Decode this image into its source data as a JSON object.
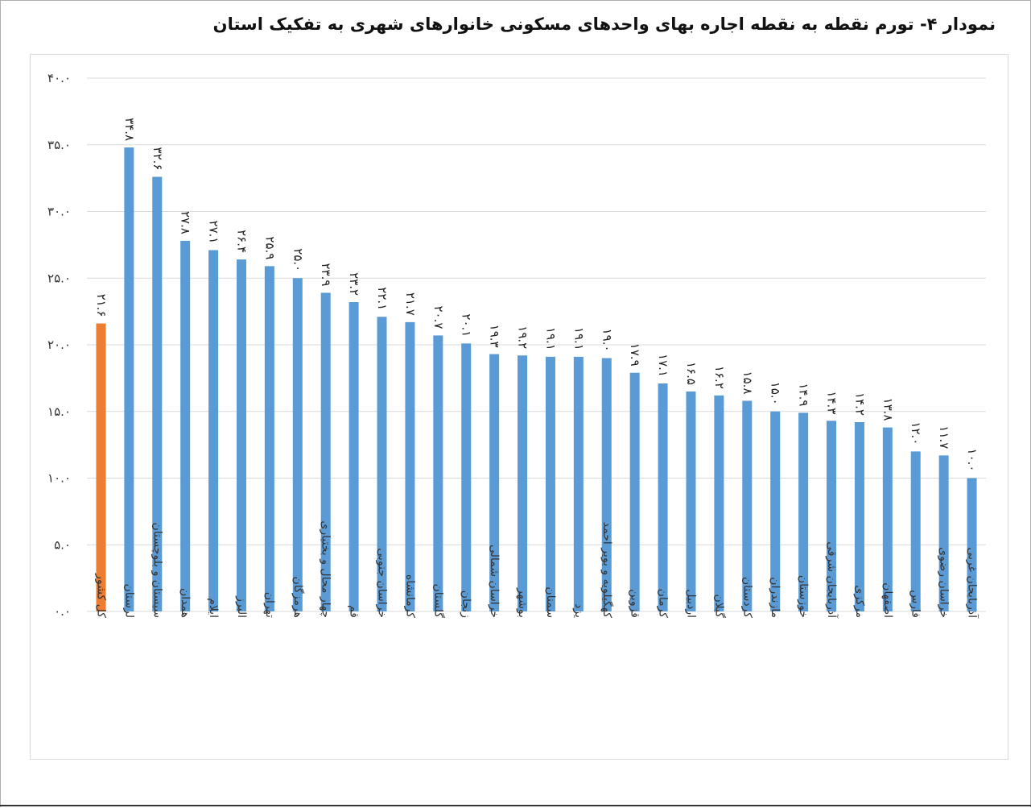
{
  "chart_data": {
    "type": "bar",
    "title": "نمودار ۴- تورم نقطه به نقطه  اجاره بهای واحدهای مسکونی خانوارهای شهری به تفکیک استان",
    "xlabel": "",
    "ylabel": "",
    "ylim": [
      0,
      40
    ],
    "yticks": [
      0,
      5,
      10,
      15,
      20,
      25,
      30,
      35,
      40
    ],
    "ytick_labels": [
      "۰.۰",
      "۵.۰",
      "۱۰.۰",
      "۱۵.۰",
      "۲۰.۰",
      "۲۵.۰",
      "۳۰.۰",
      "۳۵.۰",
      "۴۰.۰"
    ],
    "grid": true,
    "legend": "none",
    "colors": {
      "highlight": "#ED7D31",
      "default": "#5B9BD5",
      "grid": "#d9d9d9"
    },
    "categories": [
      "کل کشور",
      "لرستان",
      "سیستان و بلوچستان",
      "همدان",
      "ایلام",
      "البرز",
      "تهران",
      "هرمزگان",
      "چهار محال و بختیاری",
      "قم",
      "خراسان جنوبی",
      "کرمانشاه",
      "گلستان",
      "زنجان",
      "خراسان شمالی",
      "بوشهر",
      "سمنان",
      "یزد",
      "کهگیلویه و بویر احمد",
      "قزوین",
      "کرمان",
      "اردبیل",
      "گیلان",
      "کردستان",
      "مازندران",
      "خوزستان",
      "آذربایجان شرقی",
      "مرکزی",
      "اصفهان",
      "فارس",
      "خراسان رضوی",
      "آذربایجان غربی"
    ],
    "values": [
      21.6,
      34.8,
      32.6,
      27.8,
      27.1,
      26.4,
      25.9,
      25.0,
      23.9,
      23.2,
      22.1,
      21.7,
      20.7,
      20.1,
      19.3,
      19.2,
      19.1,
      19.1,
      19.0,
      17.9,
      17.1,
      16.5,
      16.2,
      15.8,
      15.0,
      14.9,
      14.3,
      14.2,
      13.8,
      12.0,
      11.7,
      10.0
    ],
    "value_labels": [
      "۲۱.۶",
      "۳۴.۸",
      "۳۲.۶",
      "۲۷.۸",
      "۲۷.۱",
      "۲۶.۴",
      "۲۵.۹",
      "۲۵.۰",
      "۲۳.۹",
      "۲۳.۲",
      "۲۲.۱",
      "۲۱.۷",
      "۲۰.۷",
      "۲۰.۱",
      "۱۹.۳",
      "۱۹.۲",
      "۱۹.۱",
      "۱۹.۱",
      "۱۹.۰",
      "۱۷.۹",
      "۱۷.۱",
      "۱۶.۵",
      "۱۶.۲",
      "۱۵.۸",
      "۱۵.۰",
      "۱۴.۹",
      "۱۴.۳",
      "۱۴.۲",
      "۱۳.۸",
      "۱۲.۰",
      "۱۱.۷",
      "۱۰.۰"
    ],
    "highlight_index": 0
  }
}
